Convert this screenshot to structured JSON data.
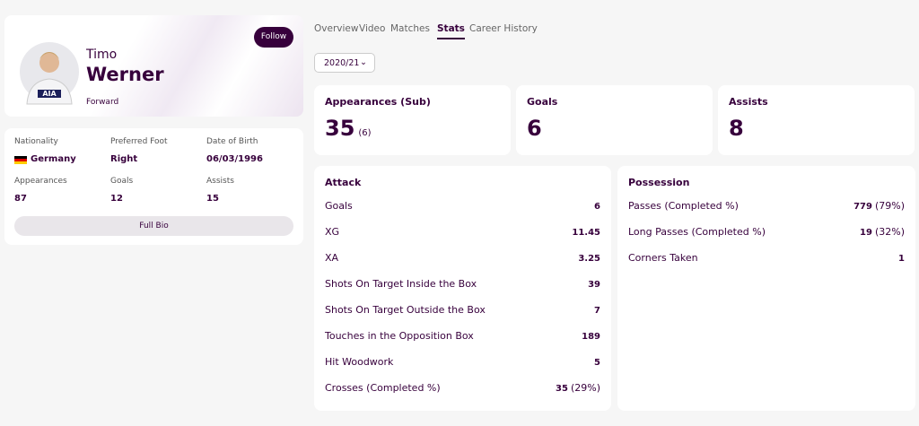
{
  "player": {
    "first_name": "Timo",
    "last_name": "Werner",
    "position": "Forward",
    "follow_button": "Follow"
  },
  "bio": {
    "fields": [
      {
        "label": "Nationality",
        "value": "Germany"
      },
      {
        "label": "Preferred Foot",
        "value": "Right"
      },
      {
        "label": "Date of Birth",
        "value": "06/03/1996"
      },
      {
        "label": "Appearances",
        "value": "87"
      },
      {
        "label": "Goals",
        "value": "12"
      },
      {
        "label": "Assists",
        "value": "15"
      }
    ],
    "button": "Full Bio"
  },
  "tabs": {
    "items": [
      "Overview",
      "Video",
      "Matches",
      "Stats",
      "Career History"
    ],
    "active": 3
  },
  "season": "2020/21",
  "summary": [
    {
      "label": "Appearances (Sub)",
      "value": "35",
      "extra": "(6)"
    },
    {
      "label": "Goals",
      "value": "6"
    },
    {
      "label": "Assists",
      "value": "8"
    }
  ],
  "sections": [
    {
      "title": "Attack",
      "rows": [
        {
          "label": "Goals",
          "value": "6"
        },
        {
          "label": "XG",
          "value": "11.45"
        },
        {
          "label": "XA",
          "value": "3.25"
        },
        {
          "label": "Shots On Target Inside the Box",
          "value": "39"
        },
        {
          "label": "Shots On Target Outside the Box",
          "value": "7"
        },
        {
          "label": "Touches in the Opposition Box",
          "value": "189"
        },
        {
          "label": "Hit Woodwork",
          "value": "5"
        },
        {
          "label": "Crosses (Completed %)",
          "value": "35",
          "extra": "(29%)"
        }
      ]
    },
    {
      "title": "Possession",
      "rows": [
        {
          "label": "Passes (Completed %)",
          "value": "779",
          "extra": "(79%)"
        },
        {
          "label": "Long Passes (Completed %)",
          "value": "19",
          "extra": "(32%)"
        },
        {
          "label": "Corners Taken",
          "value": "1"
        }
      ]
    }
  ]
}
